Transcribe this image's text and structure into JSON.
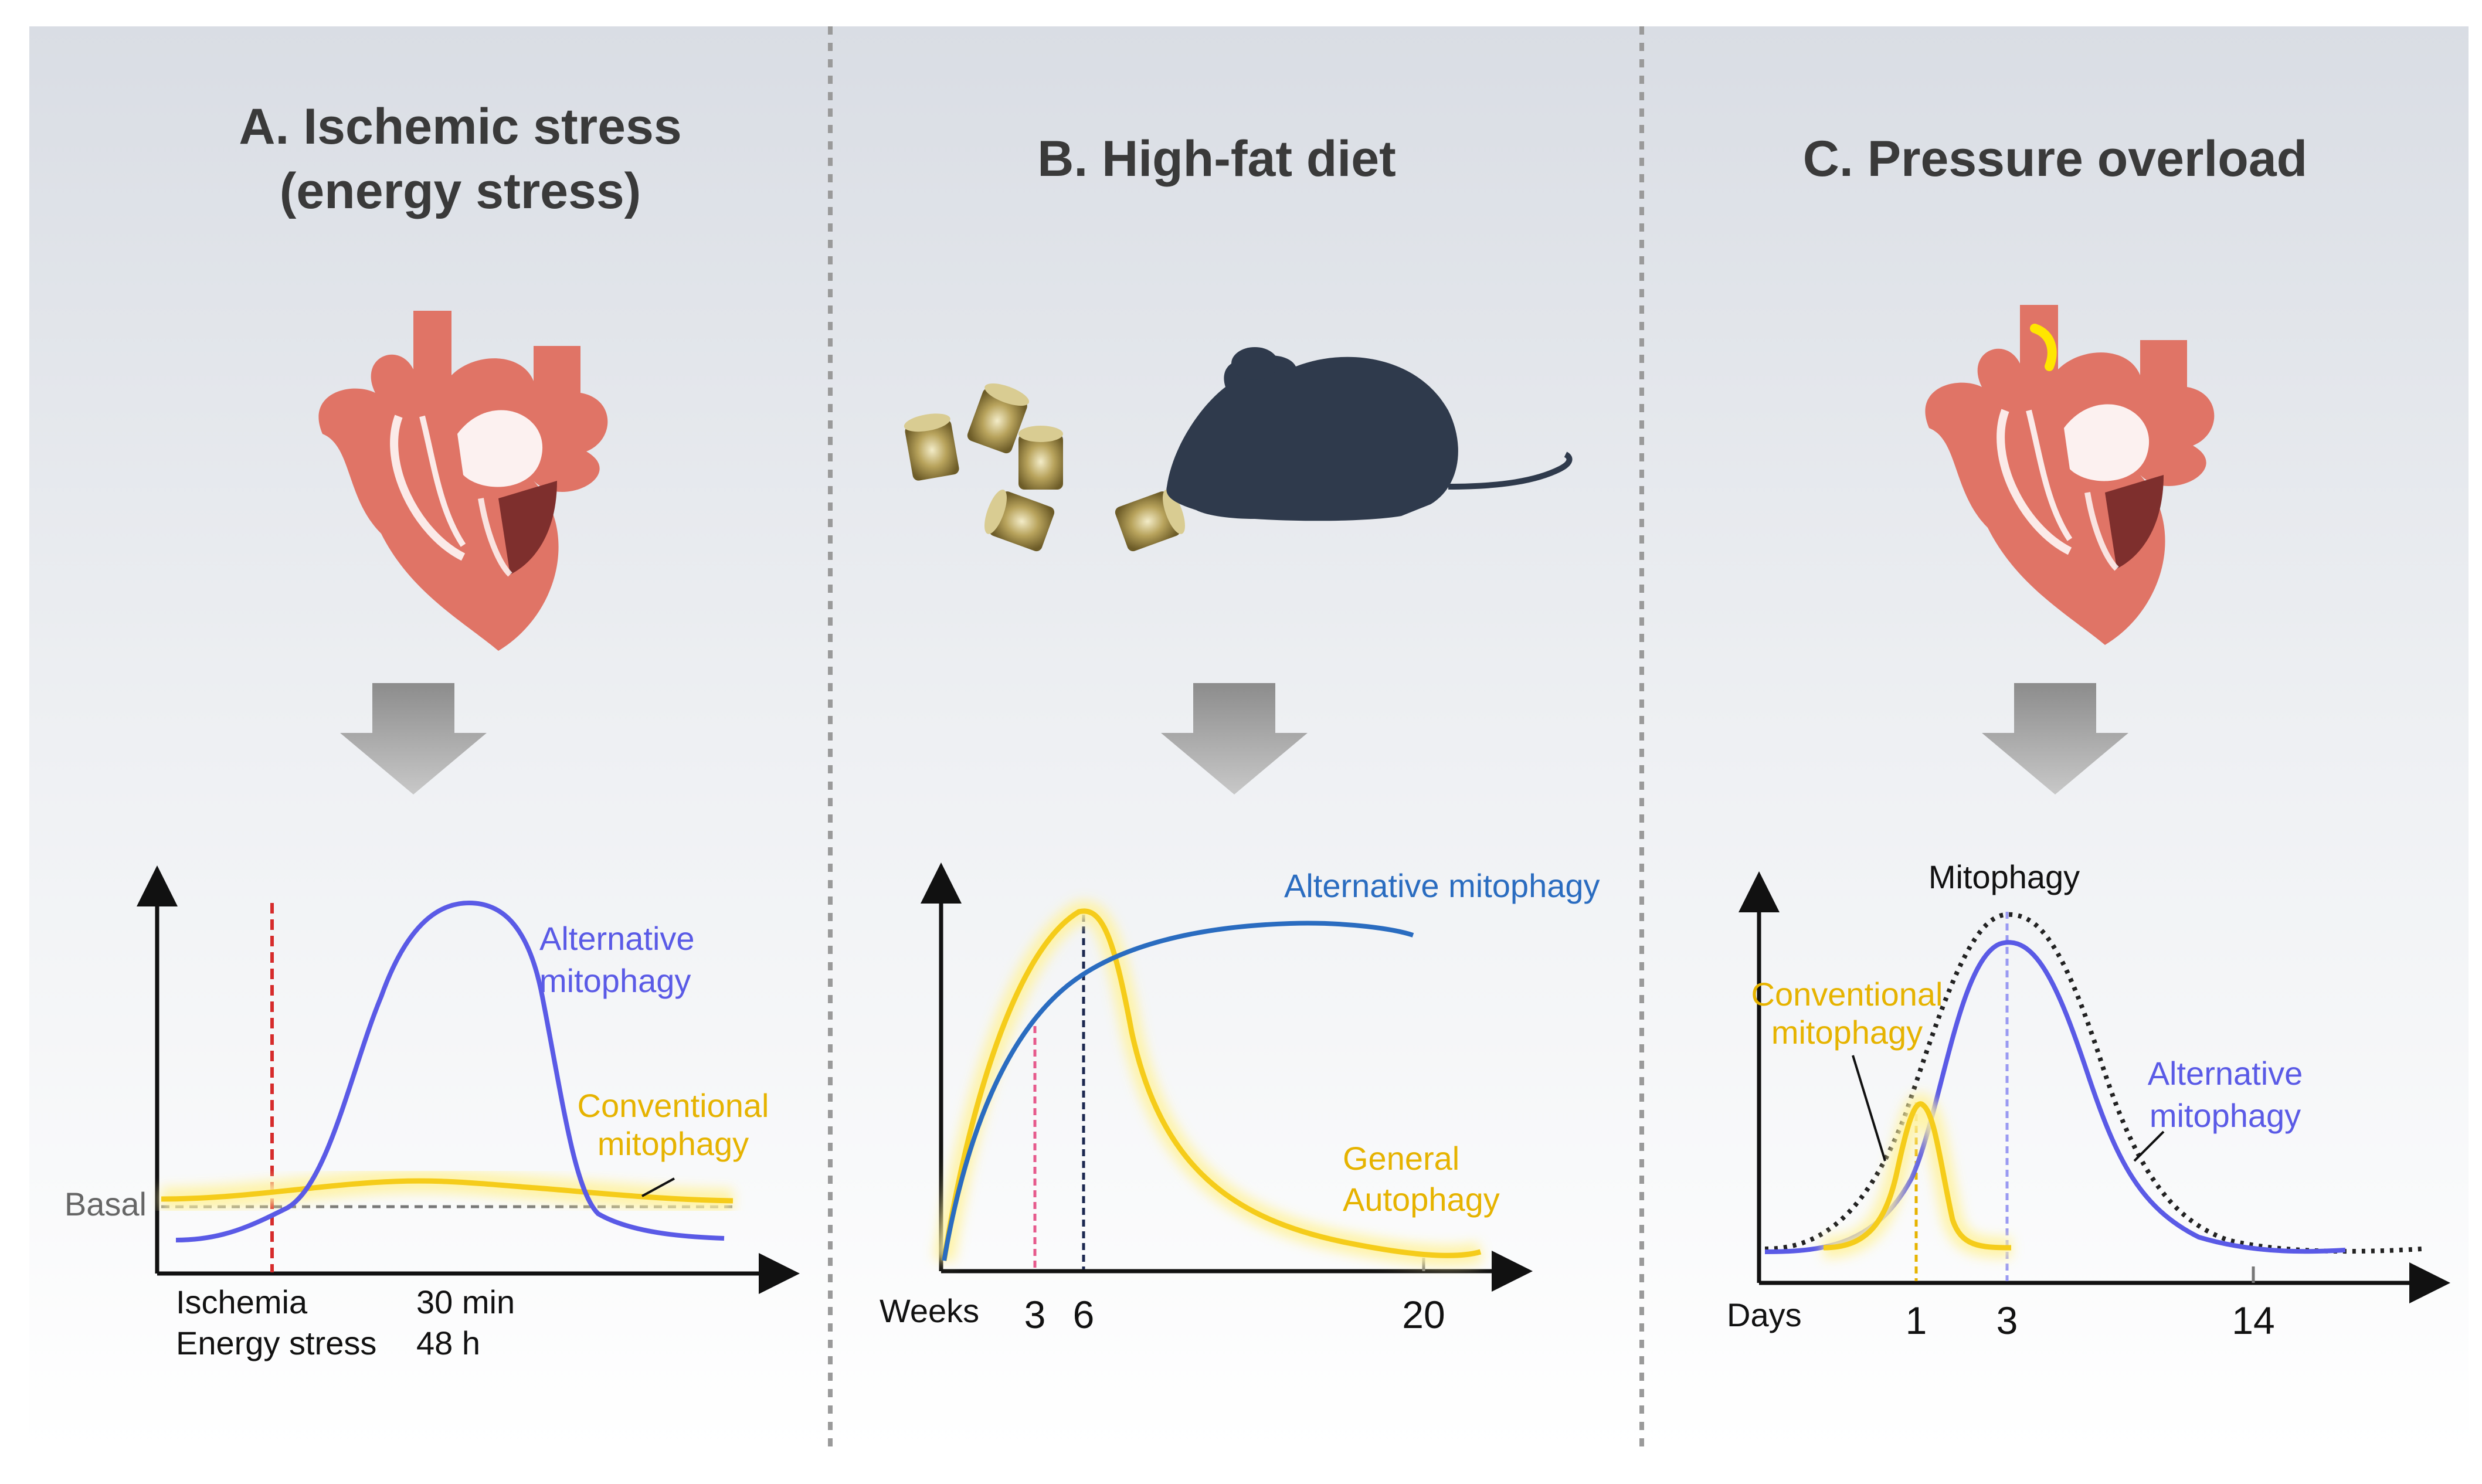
{
  "panels": [
    {
      "id": "A",
      "title_line1": "A. Ischemic stress",
      "title_line2": "(energy stress)",
      "graph": {
        "curve_labels": {
          "alternative_line1": "Alternative",
          "alternative_line2": "mitophagy",
          "conventional_line1": "Conventional",
          "conventional_line2": "mitophagy",
          "basal": "Basal"
        },
        "x_labels": {
          "row1_left": "Ischemia",
          "row1_right": "30 min",
          "row2_left": "Energy stress",
          "row2_right": "48 h"
        }
      }
    },
    {
      "id": "B",
      "title": "B. High-fat diet",
      "graph": {
        "curve_labels": {
          "alternative": "Alternative mitophagy",
          "general_line1": "General",
          "general_line2": "Autophagy"
        },
        "x_unit": "Weeks",
        "x_ticks": [
          "3",
          "6",
          "20"
        ]
      }
    },
    {
      "id": "C",
      "title": "C. Pressure overload",
      "graph": {
        "curve_labels": {
          "mitophagy": "Mitophagy",
          "conventional_line1": "Conventional",
          "conventional_line2": "mitophagy",
          "alternative_line1": "Alternative",
          "alternative_line2": "mitophagy"
        },
        "x_unit": "Days",
        "x_ticks": [
          "1",
          "3",
          "14"
        ]
      }
    }
  ],
  "colors": {
    "alternative": "#5a5ae6",
    "alternative_hfd": "#2a6cc0",
    "conventional": "#f5cc1a",
    "ischemia_line": "#d62b2b",
    "heart": "#e07466",
    "mouse": "#2f3a4c"
  }
}
